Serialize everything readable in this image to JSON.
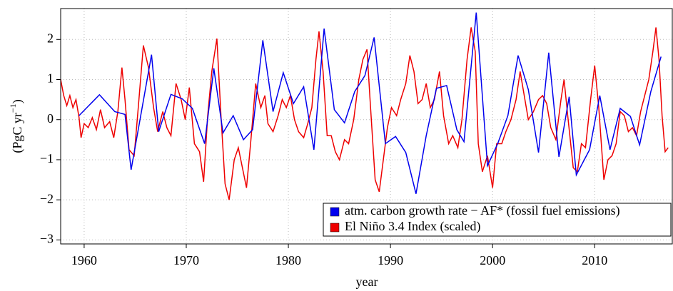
{
  "chart_data": {
    "type": "line",
    "xlabel": "year",
    "ylabel": {
      "text": "(PgC yr",
      "sup": "−1",
      "end": ")"
    },
    "xlim": [
      1957.7,
      2017.6
    ],
    "ylim": [
      -3.1,
      2.77
    ],
    "xticks": [
      1960,
      1970,
      1980,
      1990,
      2000,
      2010
    ],
    "yticks": [
      {
        "value": -3,
        "label": "−3"
      },
      {
        "value": -2,
        "label": "−2"
      },
      {
        "value": -1,
        "label": "−1"
      },
      0,
      1,
      2
    ],
    "grid": true,
    "legend": "bottom-right",
    "series": [
      {
        "name": "atm. carbon growth rate − AF* (fossil fuel emissions)",
        "color": "#0000ee",
        "x": [
          1959.5,
          1961.5,
          1963,
          1964,
          1964.6,
          1966.6,
          1967.3,
          1968.5,
          1969.6,
          1970.6,
          1971.8,
          1972.7,
          1973.6,
          1974.6,
          1975.6,
          1976.5,
          1977.5,
          1978.5,
          1979.5,
          1980.5,
          1981.5,
          1982.5,
          1983.5,
          1984.5,
          1985.5,
          1986.5,
          1987.5,
          1988.4,
          1989.5,
          1990.5,
          1991.5,
          1992.5,
          1993.5,
          1994.5,
          1995.5,
          1996.5,
          1997.2,
          1998.4,
          1999.5,
          2000.5,
          2001.5,
          2002.5,
          2003.5,
          2004.5,
          2005.5,
          2006.5,
          2007.5,
          2008.2,
          2009.5,
          2010.5,
          2011.5,
          2012.5,
          2013.5,
          2014.4,
          2015.5,
          2016.5
        ],
        "values": [
          0.1,
          0.62,
          0.2,
          0.13,
          -1.25,
          1.62,
          -0.3,
          0.63,
          0.52,
          0.28,
          -0.6,
          1.28,
          -0.33,
          0.1,
          -0.5,
          -0.25,
          1.98,
          0.2,
          1.17,
          0.4,
          0.82,
          -0.75,
          2.27,
          0.25,
          -0.08,
          0.7,
          1.1,
          2.05,
          -0.6,
          -0.42,
          -0.82,
          -1.85,
          -0.4,
          0.78,
          0.85,
          -0.25,
          -0.55,
          2.67,
          -1.15,
          -0.6,
          0.1,
          1.6,
          0.75,
          -0.82,
          1.67,
          -0.93,
          0.57,
          -1.38,
          -0.75,
          0.6,
          -0.75,
          0.28,
          0.08,
          -0.63,
          0.7,
          1.57
        ]
      },
      {
        "name": "El Niño 3.4 Index (scaled)",
        "color": "#ee0000",
        "x": [
          1957.7,
          1958.0,
          1958.3,
          1958.6,
          1958.9,
          1959.2,
          1959.5,
          1959.7,
          1960.0,
          1960.4,
          1960.8,
          1961.2,
          1961.6,
          1962.0,
          1962.5,
          1962.9,
          1963.3,
          1963.7,
          1964.0,
          1964.4,
          1964.9,
          1965.3,
          1965.8,
          1966.3,
          1966.8,
          1967.2,
          1967.7,
          1968.1,
          1968.5,
          1969.0,
          1969.5,
          1969.9,
          1970.3,
          1970.8,
          1971.3,
          1971.7,
          1972.1,
          1972.5,
          1973.0,
          1973.4,
          1973.8,
          1974.2,
          1974.7,
          1975.1,
          1975.5,
          1975.9,
          1976.3,
          1976.8,
          1977.3,
          1977.7,
          1978.0,
          1978.5,
          1979.0,
          1979.4,
          1979.8,
          1980.2,
          1980.6,
          1981.0,
          1981.5,
          1981.9,
          1982.3,
          1982.7,
          1983.0,
          1983.4,
          1983.8,
          1984.2,
          1984.6,
          1985.0,
          1985.5,
          1985.9,
          1986.4,
          1986.9,
          1987.3,
          1987.7,
          1988.0,
          1988.5,
          1988.9,
          1989.3,
          1989.7,
          1990.1,
          1990.6,
          1991.0,
          1991.5,
          1991.9,
          1992.3,
          1992.7,
          1993.1,
          1993.5,
          1993.9,
          1994.3,
          1994.8,
          1995.2,
          1995.7,
          1996.1,
          1996.6,
          1997.0,
          1997.5,
          1997.9,
          1998.3,
          1998.6,
          1999.0,
          1999.5,
          2000.0,
          2000.4,
          2000.9,
          2001.3,
          2001.8,
          2002.3,
          2002.7,
          2003.1,
          2003.5,
          2004.0,
          2004.5,
          2004.9,
          2005.3,
          2005.7,
          2006.2,
          2006.7,
          2007.0,
          2007.4,
          2007.9,
          2008.3,
          2008.7,
          2009.1,
          2009.6,
          2010.0,
          2010.4,
          2010.9,
          2011.3,
          2011.7,
          2012.1,
          2012.5,
          2012.9,
          2013.3,
          2013.7,
          2014.1,
          2014.5,
          2014.9,
          2015.3,
          2015.7,
          2016.0,
          2016.3,
          2016.6,
          2016.9,
          2017.2
        ],
        "values": [
          1.0,
          0.6,
          0.35,
          0.6,
          0.3,
          0.5,
          0.05,
          -0.45,
          -0.1,
          -0.2,
          0.05,
          -0.25,
          0.25,
          -0.2,
          -0.05,
          -0.45,
          0.2,
          1.3,
          0.5,
          -0.75,
          -0.9,
          0.3,
          1.85,
          1.3,
          0.3,
          -0.3,
          0.2,
          -0.2,
          -0.4,
          0.9,
          0.5,
          0.0,
          0.8,
          -0.6,
          -0.8,
          -1.55,
          0.1,
          1.2,
          2.02,
          0.1,
          -1.6,
          -2.0,
          -1.0,
          -0.7,
          -1.2,
          -1.7,
          -0.6,
          0.9,
          0.3,
          0.6,
          -0.1,
          -0.3,
          0.1,
          0.5,
          0.3,
          0.6,
          0.0,
          -0.3,
          -0.45,
          -0.1,
          0.3,
          1.5,
          2.2,
          1.2,
          -0.4,
          -0.4,
          -0.8,
          -1.0,
          -0.5,
          -0.6,
          0.0,
          1.0,
          1.5,
          1.75,
          0.5,
          -1.5,
          -1.8,
          -1.0,
          -0.2,
          0.3,
          0.1,
          0.5,
          0.9,
          1.6,
          1.2,
          0.4,
          0.5,
          0.9,
          0.3,
          0.5,
          1.2,
          0.1,
          -0.6,
          -0.4,
          -0.7,
          0.0,
          1.5,
          2.3,
          1.7,
          -0.6,
          -1.3,
          -0.9,
          -1.7,
          -0.6,
          -0.6,
          -0.3,
          0.0,
          0.5,
          1.2,
          0.6,
          0.0,
          0.2,
          0.5,
          0.6,
          0.4,
          -0.2,
          -0.5,
          0.5,
          1.0,
          0.0,
          -1.2,
          -1.3,
          -0.6,
          -0.7,
          0.5,
          1.35,
          0.3,
          -1.5,
          -1.0,
          -0.9,
          -0.6,
          0.2,
          0.1,
          -0.3,
          -0.2,
          -0.4,
          0.2,
          0.6,
          1.0,
          1.7,
          2.3,
          1.5,
          0.1,
          -0.8,
          -0.7
        ]
      }
    ]
  }
}
